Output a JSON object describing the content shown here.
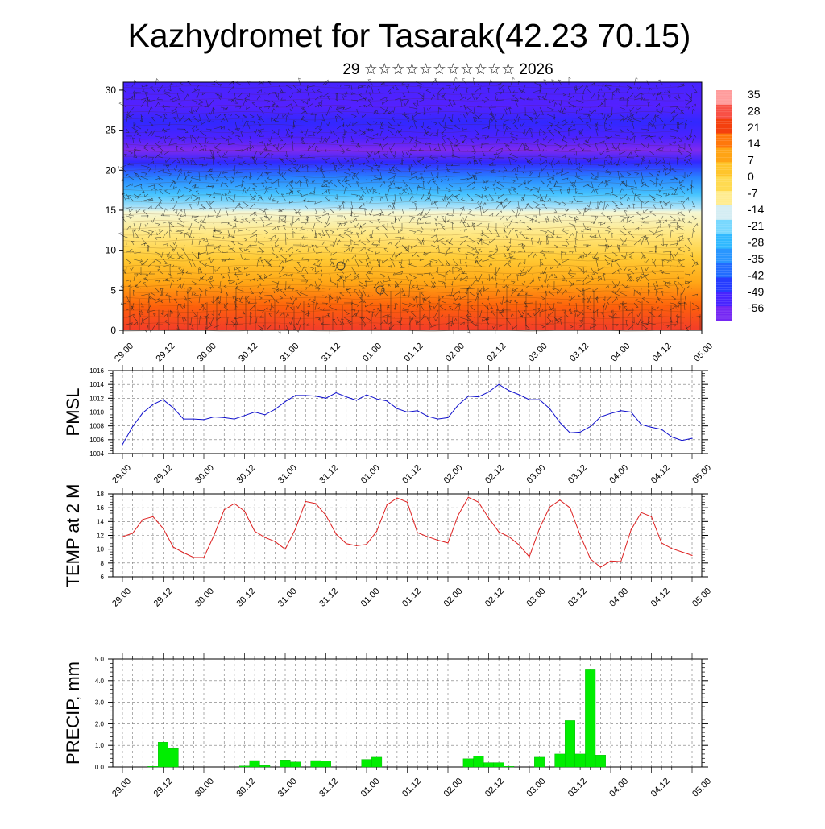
{
  "title": "Kazhydromet for Tasarak(42.23 70.15)",
  "subtitle": "29 ☆☆☆☆☆☆☆☆☆☆☆ 2026",
  "time_labels": [
    "29.00",
    "29.12",
    "30.00",
    "30.12",
    "31.00",
    "31.12",
    "01.00",
    "01.12",
    "02.00",
    "02.12",
    "03.00",
    "03.12",
    "04.00",
    "04.12",
    "05.00"
  ],
  "chart_data": [
    {
      "id": "cross-section",
      "type": "heatmap",
      "title": "",
      "xlabel": "",
      "ylabel": "",
      "ylim": [
        0,
        31
      ],
      "y_ticks": [
        "0",
        "5",
        "10",
        "15",
        "20",
        "25",
        "30"
      ],
      "colorbar": {
        "range": [
          -63,
          42
        ],
        "labels": [
          "35",
          "28",
          "21",
          "14",
          "7",
          "0",
          "-7",
          "-14",
          "-21",
          "-28",
          "-35",
          "-42",
          "-49",
          "-56"
        ]
      },
      "temperature_profile": [
        {
          "level": 0,
          "value": 30
        },
        {
          "level": 3,
          "value": 22
        },
        {
          "level": 6,
          "value": 12
        },
        {
          "level": 9,
          "value": 4
        },
        {
          "level": 12,
          "value": -6
        },
        {
          "level": 14.8,
          "value": -11
        },
        {
          "level": 15.2,
          "value": -16
        },
        {
          "level": 17,
          "value": -25
        },
        {
          "level": 19,
          "value": -36
        },
        {
          "level": 21,
          "value": -50
        },
        {
          "level": 22.5,
          "value": -61
        },
        {
          "level": 24,
          "value": -54
        },
        {
          "level": 26,
          "value": -50
        },
        {
          "level": 28,
          "value": -55
        },
        {
          "level": 31,
          "value": -53
        }
      ]
    },
    {
      "id": "pmsl",
      "type": "line",
      "title": "",
      "xlabel": "",
      "ylabel": "PMSL",
      "ylim": [
        1004,
        1016
      ],
      "y_ticks": [
        "1004",
        "1006",
        "1008",
        "1010",
        "1012",
        "1014",
        "1016"
      ],
      "color": "#1010cc",
      "values": [
        1005.3,
        1007.9,
        1009.9,
        1011.1,
        1011.8,
        1010.6,
        1009.0,
        1009.0,
        1008.9,
        1009.3,
        1009.2,
        1009.0,
        1009.5,
        1010.0,
        1009.6,
        1010.4,
        1011.5,
        1012.4,
        1012.4,
        1012.3,
        1012.0,
        1012.8,
        1012.2,
        1011.7,
        1012.5,
        1011.9,
        1011.6,
        1010.5,
        1010.0,
        1010.2,
        1009.4,
        1009.0,
        1009.2,
        1011.0,
        1012.3,
        1012.2,
        1012.9,
        1014.0,
        1013.1,
        1012.5,
        1011.8,
        1011.8,
        1010.5,
        1008.5,
        1007.0,
        1007.1,
        1007.9,
        1009.3,
        1009.8,
        1010.2,
        1010.0,
        1008.2,
        1007.8,
        1007.5,
        1006.4,
        1005.9,
        1006.2
      ]
    },
    {
      "id": "temp2m",
      "type": "line",
      "title": "",
      "xlabel": "",
      "ylabel": "TEMP at 2 M",
      "ylim": [
        6,
        18
      ],
      "y_ticks": [
        "6",
        "8",
        "10",
        "12",
        "14",
        "16",
        "18"
      ],
      "color": "#dd2020",
      "values": [
        11.8,
        12.3,
        14.3,
        14.7,
        13.0,
        10.3,
        9.5,
        8.8,
        8.8,
        12.0,
        15.7,
        16.6,
        15.5,
        12.6,
        11.7,
        11.1,
        10.0,
        12.9,
        16.9,
        16.6,
        14.9,
        12.2,
        10.8,
        10.5,
        10.7,
        12.6,
        16.4,
        17.4,
        16.8,
        12.4,
        11.8,
        11.3,
        10.9,
        14.9,
        17.5,
        16.8,
        14.5,
        12.5,
        11.8,
        10.6,
        8.9,
        13.0,
        16.1,
        17.1,
        16.0,
        12.0,
        8.6,
        7.4,
        8.3,
        8.2,
        12.8,
        15.3,
        14.7,
        10.9,
        10.1,
        9.6,
        9.1
      ]
    },
    {
      "id": "precip",
      "type": "bar",
      "title": "",
      "xlabel": "",
      "ylabel": "PRECIP, mm",
      "ylim": [
        0,
        5
      ],
      "y_ticks": [
        "0.0",
        "1.0",
        "2.0",
        "3.0",
        "4.0",
        "5.0"
      ],
      "color": "#00ee00",
      "values": [
        0,
        0,
        0,
        0.03,
        1.15,
        0.85,
        0,
        0,
        0,
        0,
        0,
        0,
        0.05,
        0.3,
        0.07,
        0,
        0.33,
        0.23,
        0,
        0.3,
        0.27,
        0,
        0,
        0,
        0.35,
        0.45,
        0,
        0,
        0,
        0,
        0,
        0,
        0,
        0,
        0.38,
        0.5,
        0.2,
        0.2,
        0.03,
        0,
        0,
        0.45,
        0,
        0.6,
        2.15,
        0.6,
        4.5,
        0.55,
        0,
        0,
        0,
        0,
        0,
        0,
        0,
        0,
        0
      ]
    }
  ]
}
